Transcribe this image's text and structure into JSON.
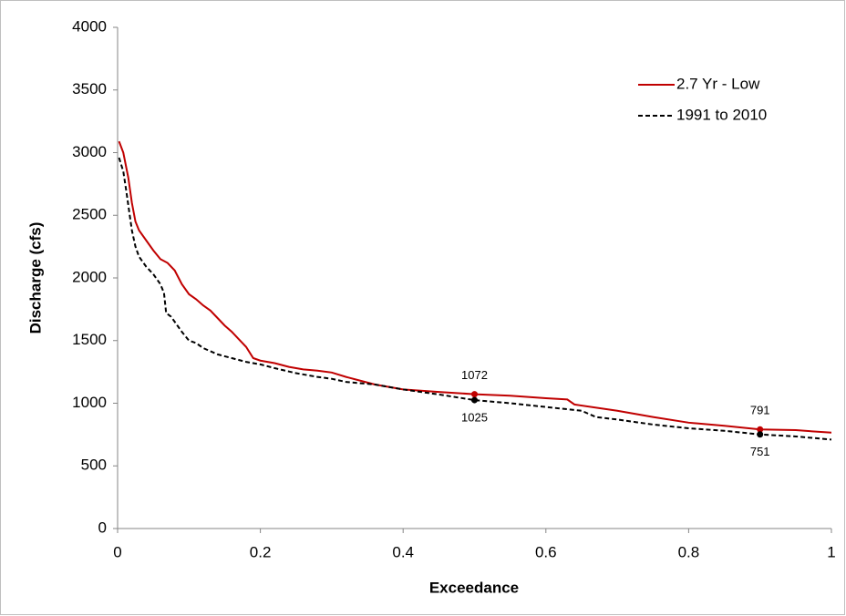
{
  "chart_data": {
    "type": "line",
    "x_label": "Exceedance",
    "y_label": "Discharge (cfs)",
    "xlim": [
      0,
      1
    ],
    "xticks": [
      0,
      0.2,
      0.4,
      0.6,
      0.8,
      1
    ],
    "ylim": [
      0,
      4000
    ],
    "yticks": [
      0,
      500,
      1000,
      1500,
      2000,
      2500,
      3000,
      3500,
      4000
    ],
    "grid": false,
    "legend": "upper right",
    "series": [
      {
        "name": "2.7 Yr - Low",
        "color": "#c00000",
        "dashed": false,
        "x": [
          0.002,
          0.008,
          0.015,
          0.02,
          0.025,
          0.03,
          0.04,
          0.05,
          0.06,
          0.07,
          0.08,
          0.09,
          0.1,
          0.11,
          0.12,
          0.13,
          0.14,
          0.15,
          0.16,
          0.17,
          0.18,
          0.19,
          0.2,
          0.22,
          0.24,
          0.26,
          0.28,
          0.3,
          0.32,
          0.34,
          0.36,
          0.38,
          0.4,
          0.45,
          0.5,
          0.55,
          0.6,
          0.63,
          0.64,
          0.7,
          0.75,
          0.8,
          0.85,
          0.9,
          0.95,
          1.0
        ],
        "values": [
          3090,
          3000,
          2800,
          2600,
          2450,
          2380,
          2300,
          2220,
          2150,
          2120,
          2060,
          1950,
          1870,
          1830,
          1780,
          1740,
          1680,
          1620,
          1570,
          1510,
          1450,
          1360,
          1340,
          1320,
          1290,
          1270,
          1260,
          1245,
          1210,
          1180,
          1150,
          1130,
          1110,
          1090,
          1072,
          1060,
          1040,
          1030,
          990,
          940,
          890,
          845,
          820,
          791,
          785,
          765
        ],
        "markers": [
          {
            "x": 0.5,
            "y": 1072
          },
          {
            "x": 0.9,
            "y": 791
          }
        ]
      },
      {
        "name": "1991 to 2010",
        "color": "#000000",
        "dashed": true,
        "x": [
          0.002,
          0.008,
          0.012,
          0.017,
          0.02,
          0.025,
          0.03,
          0.04,
          0.05,
          0.06,
          0.065,
          0.068,
          0.075,
          0.08,
          0.09,
          0.1,
          0.11,
          0.12,
          0.14,
          0.16,
          0.18,
          0.2,
          0.22,
          0.25,
          0.28,
          0.3,
          0.32,
          0.36,
          0.4,
          0.45,
          0.5,
          0.55,
          0.6,
          0.65,
          0.67,
          0.7,
          0.75,
          0.8,
          0.85,
          0.9,
          0.95,
          1.0
        ],
        "values": [
          2960,
          2850,
          2700,
          2500,
          2380,
          2250,
          2170,
          2090,
          2030,
          1950,
          1880,
          1720,
          1690,
          1650,
          1570,
          1500,
          1480,
          1440,
          1390,
          1360,
          1330,
          1310,
          1280,
          1240,
          1210,
          1195,
          1170,
          1150,
          1110,
          1070,
          1025,
          1000,
          970,
          940,
          890,
          870,
          830,
          800,
          780,
          751,
          735,
          710
        ],
        "markers": [
          {
            "x": 0.5,
            "y": 1025
          },
          {
            "x": 0.9,
            "y": 751
          }
        ]
      }
    ]
  }
}
